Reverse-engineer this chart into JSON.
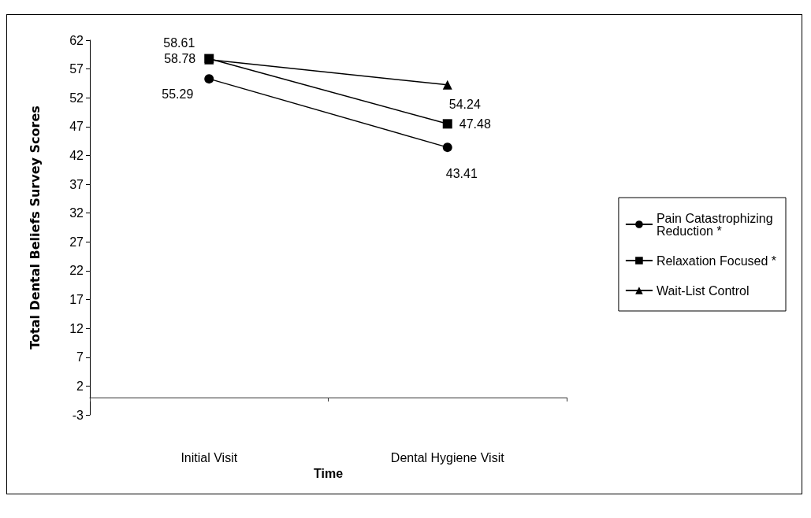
{
  "chart_data": {
    "type": "line",
    "xlabel": "Time",
    "ylabel": "Total Dental Beliefs Survey Scores",
    "categories": [
      "Initial Visit",
      "Dental Hygiene Visit"
    ],
    "series": [
      {
        "name": "Pain Catastrophizing Reduction *",
        "color": "#000000",
        "marker": "circle",
        "values": [
          55.29,
          43.41
        ]
      },
      {
        "name": "Relaxation Focused *",
        "color": "#000000",
        "marker": "square",
        "values": [
          58.78,
          47.48
        ]
      },
      {
        "name": "Wait-List Control",
        "color": "#000000",
        "marker": "triangle",
        "values": [
          58.61,
          54.24
        ]
      }
    ],
    "ylim": [
      -3,
      62
    ],
    "yticks": [
      -3,
      2,
      7,
      12,
      17,
      22,
      27,
      32,
      37,
      42,
      47,
      52,
      57,
      62
    ],
    "grid": false,
    "legend": "right",
    "data_labels": true,
    "line_style": "solid"
  }
}
